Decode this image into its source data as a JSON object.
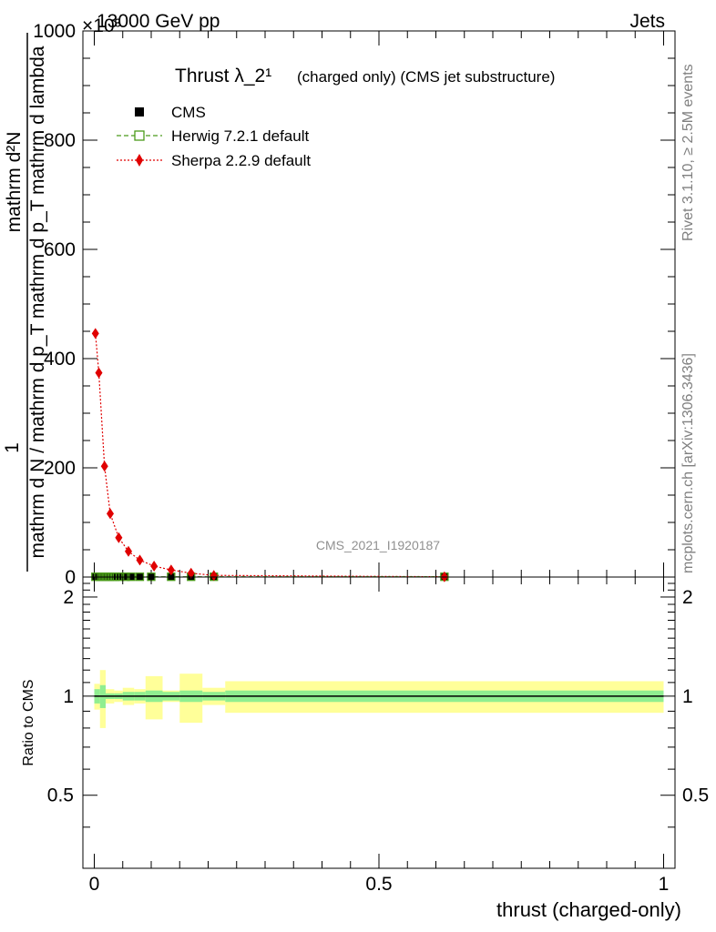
{
  "header": {
    "left": "13000 GeV pp",
    "right": "Jets",
    "exponent": "×10³"
  },
  "sidebar": {
    "rivet": "Rivet 3.1.10, ≥ 2.5M events",
    "mcplots": "mcplots.cern.ch [arXiv:1306.3436]"
  },
  "chart_data": {
    "type": "scatter",
    "title": "Thrust λ_2¹",
    "subtitle": "(charged only) (CMS jet substructure)",
    "watermark": "CMS_2021_I1920187",
    "xlabel": "thrust (charged-only)",
    "ylabel": "1 / mathrm d N / mathrm d p_T mathrm d p_T mathrm d lambda · mathrm d²N",
    "ylabel_numerator": "mathrm d²N",
    "ylabel_denominator": "mathrm d N / mathrm d p_T mathrm d p_T mathrm d lambda",
    "ylabel_prefix": "1",
    "ratio_ylabel": "Ratio to CMS",
    "xlim": [
      -0.02,
      1.02
    ],
    "ylim": [
      0,
      1000
    ],
    "ratio_ylim": [
      0.3,
      2.3
    ],
    "x_ticks": [
      0,
      0.5,
      1
    ],
    "x_tick_labels": [
      "0",
      "0.5",
      "1"
    ],
    "y_ticks": [
      0,
      200,
      400,
      600,
      800,
      1000
    ],
    "y_tick_labels": [
      "0",
      "200",
      "400",
      "600",
      "800",
      "1000"
    ],
    "ratio_ticks": [
      0.5,
      1,
      2
    ],
    "ratio_tick_labels": [
      "0.5",
      "1",
      "2"
    ],
    "legend": [
      {
        "name": "CMS",
        "color": "#000000",
        "marker": "square"
      },
      {
        "name": "Herwig 7.2.1 default",
        "color": "#4a9a1a",
        "marker": "open-square"
      },
      {
        "name": "Sherpa 2.2.9 default",
        "color": "#e00000",
        "marker": "diamond"
      }
    ],
    "series": [
      {
        "name": "CMS",
        "x": [
          0.002,
          0.007,
          0.012,
          0.017,
          0.022,
          0.027,
          0.032,
          0.037,
          0.045,
          0.055,
          0.065,
          0.08,
          0.1,
          0.135,
          0.17,
          0.21,
          0.615
        ],
        "y": [
          0.5,
          0.5,
          0.5,
          0.5,
          0.5,
          0.5,
          0.5,
          0.5,
          0.5,
          0.5,
          0.5,
          0.5,
          0.5,
          0.5,
          0.5,
          0.5,
          0.5
        ]
      },
      {
        "name": "Herwig 7.2.1 default",
        "x": [
          0.002,
          0.007,
          0.012,
          0.017,
          0.022,
          0.027,
          0.032,
          0.037,
          0.045,
          0.055,
          0.065,
          0.08,
          0.1,
          0.135,
          0.17,
          0.21,
          0.615
        ],
        "y": [
          0.5,
          0.5,
          0.5,
          0.5,
          0.5,
          0.5,
          0.5,
          0.5,
          0.5,
          0.5,
          0.5,
          0.5,
          0.5,
          0.5,
          0.5,
          0.5,
          0.5
        ]
      },
      {
        "name": "Sherpa 2.2.9 default",
        "x": [
          0.002,
          0.008,
          0.018,
          0.028,
          0.043,
          0.06,
          0.08,
          0.105,
          0.135,
          0.17,
          0.21,
          0.615
        ],
        "y": [
          446,
          374,
          203,
          116,
          72,
          47,
          31,
          20,
          13,
          7,
          3,
          0.5
        ]
      }
    ],
    "ratio_bands": {
      "x_edges": [
        0,
        0.01,
        0.02,
        0.035,
        0.05,
        0.07,
        0.09,
        0.12,
        0.15,
        0.19,
        0.23,
        1.0
      ],
      "stat_half": [
        0.05,
        0.08,
        0.02,
        0.02,
        0.03,
        0.03,
        0.04,
        0.03,
        0.04,
        0.03,
        0.04
      ],
      "total_half": [
        0.09,
        0.2,
        0.05,
        0.04,
        0.06,
        0.05,
        0.15,
        0.04,
        0.17,
        0.06,
        0.11
      ]
    }
  }
}
